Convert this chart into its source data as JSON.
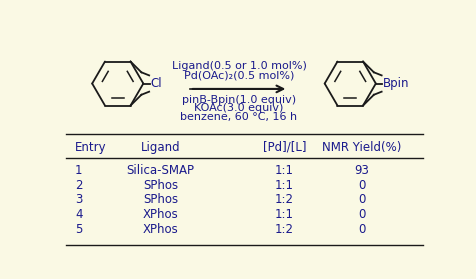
{
  "background_color": "#faf9e4",
  "reaction": {
    "above_arrow": [
      "Pd(OAc)₂(0.5 mol%)",
      "Ligand(0.5 or 1.0 mol%)"
    ],
    "below_arrow": [
      "pinB-Bpin(1.0 equiv)",
      "KOAc(3.0 equiv)",
      "benzene, 60 °C, 16 h"
    ]
  },
  "table": {
    "headers": [
      "Entry",
      "Ligand",
      "[Pd]/[L]",
      "NMR Yield(%)"
    ],
    "rows": [
      [
        "1",
        "Silica-SMAP",
        "1:1",
        "93"
      ],
      [
        "2",
        "SPhos",
        "1:1",
        "0"
      ],
      [
        "3",
        "SPhos",
        "1:2",
        "0"
      ],
      [
        "4",
        "XPhos",
        "1:1",
        "0"
      ],
      [
        "5",
        "XPhos",
        "1:2",
        "0"
      ]
    ]
  },
  "text_color": "#1a1a8c",
  "line_color": "#1a1a1a",
  "mol_color": "#1a1a1a",
  "font_size": 8.5,
  "arrow_text_size": 8.0
}
